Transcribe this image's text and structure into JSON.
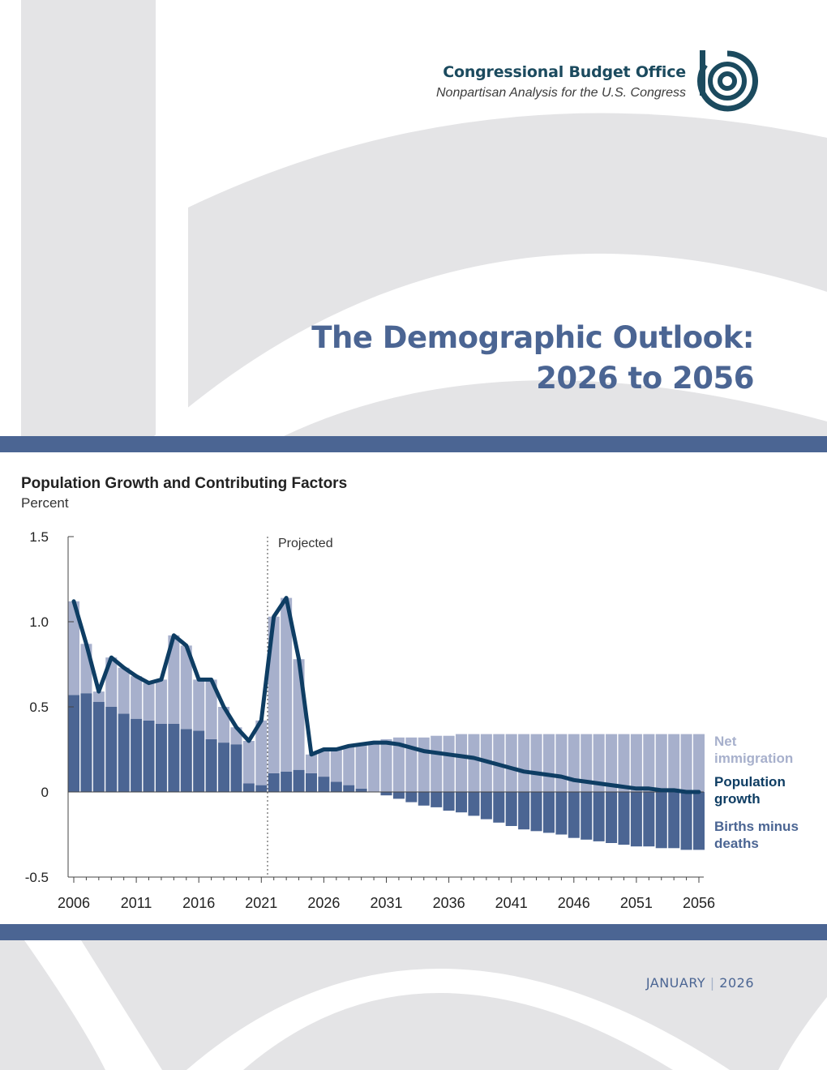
{
  "brand": {
    "name": "Congressional Budget Office",
    "tagline": "Nonpartisan Analysis for the U.S. Congress",
    "logo_icon": "cbo-logo-icon"
  },
  "report": {
    "title_line1": "The Demographic Outlook:",
    "title_line2": "2026 to 2056",
    "date_month": "JANUARY",
    "date_sep": "|",
    "date_year": "2026"
  },
  "colors": {
    "title": "#4b6593",
    "band": "#4b6593",
    "background_shape": "#e4e4e6",
    "net_immigration": "#a7b0cc",
    "births_minus_deaths": "#4b6593",
    "population_growth": "#0e3d63"
  },
  "chart_data": {
    "type": "bar",
    "title": "Population Growth and Contributing Factors",
    "ylabel": "Percent",
    "ylim": [
      -0.5,
      1.5
    ],
    "yticks": [
      1.5,
      1.0,
      0.5,
      0,
      -0.5
    ],
    "ytick_labels": [
      "1.5",
      "1.0",
      "0.5",
      "0",
      "-0.5"
    ],
    "xticks": [
      2006,
      2011,
      2016,
      2021,
      2026,
      2031,
      2036,
      2041,
      2046,
      2051,
      2056
    ],
    "projection_start_label": "Projected",
    "projection_start_year": 2021,
    "grid": false,
    "legend_placement": "right",
    "years": [
      2006,
      2007,
      2008,
      2009,
      2010,
      2011,
      2012,
      2013,
      2014,
      2015,
      2016,
      2017,
      2018,
      2019,
      2020,
      2021,
      2022,
      2023,
      2024,
      2025,
      2026,
      2027,
      2028,
      2029,
      2030,
      2031,
      2032,
      2033,
      2034,
      2035,
      2036,
      2037,
      2038,
      2039,
      2040,
      2041,
      2042,
      2043,
      2044,
      2045,
      2046,
      2047,
      2048,
      2049,
      2050,
      2051,
      2052,
      2053,
      2054,
      2055,
      2056
    ],
    "series": [
      {
        "name": "Net immigration",
        "kind": "stacked-bar",
        "values": [
          0.55,
          0.29,
          0.06,
          0.29,
          0.27,
          0.25,
          0.22,
          0.26,
          0.52,
          0.49,
          0.3,
          0.35,
          0.21,
          0.1,
          0.25,
          0.38,
          0.92,
          1.02,
          0.65,
          0.11,
          0.16,
          0.19,
          0.23,
          0.26,
          0.29,
          0.31,
          0.32,
          0.32,
          0.32,
          0.33,
          0.33,
          0.34,
          0.34,
          0.34,
          0.34,
          0.34,
          0.34,
          0.34,
          0.34,
          0.34,
          0.34,
          0.34,
          0.34,
          0.34,
          0.34,
          0.34,
          0.34,
          0.34,
          0.34,
          0.34,
          0.34
        ]
      },
      {
        "name": "Births minus deaths",
        "kind": "stacked-bar",
        "values": [
          0.57,
          0.58,
          0.53,
          0.5,
          0.46,
          0.43,
          0.42,
          0.4,
          0.4,
          0.37,
          0.36,
          0.31,
          0.29,
          0.28,
          0.05,
          0.04,
          0.11,
          0.12,
          0.13,
          0.11,
          0.09,
          0.06,
          0.04,
          0.02,
          0.0,
          -0.02,
          -0.04,
          -0.06,
          -0.08,
          -0.09,
          -0.11,
          -0.12,
          -0.14,
          -0.16,
          -0.18,
          -0.2,
          -0.22,
          -0.23,
          -0.24,
          -0.25,
          -0.27,
          -0.28,
          -0.29,
          -0.3,
          -0.31,
          -0.32,
          -0.32,
          -0.33,
          -0.33,
          -0.34,
          -0.34
        ]
      },
      {
        "name": "Population growth",
        "kind": "line",
        "values": [
          1.12,
          0.87,
          0.59,
          0.79,
          0.73,
          0.68,
          0.64,
          0.66,
          0.92,
          0.86,
          0.66,
          0.66,
          0.5,
          0.38,
          0.3,
          0.42,
          1.03,
          1.14,
          0.78,
          0.22,
          0.25,
          0.25,
          0.27,
          0.28,
          0.29,
          0.29,
          0.28,
          0.26,
          0.24,
          0.23,
          0.22,
          0.21,
          0.2,
          0.18,
          0.16,
          0.14,
          0.12,
          0.11,
          0.1,
          0.09,
          0.07,
          0.06,
          0.05,
          0.04,
          0.03,
          0.02,
          0.02,
          0.01,
          0.01,
          0.0,
          0.0
        ]
      }
    ]
  }
}
